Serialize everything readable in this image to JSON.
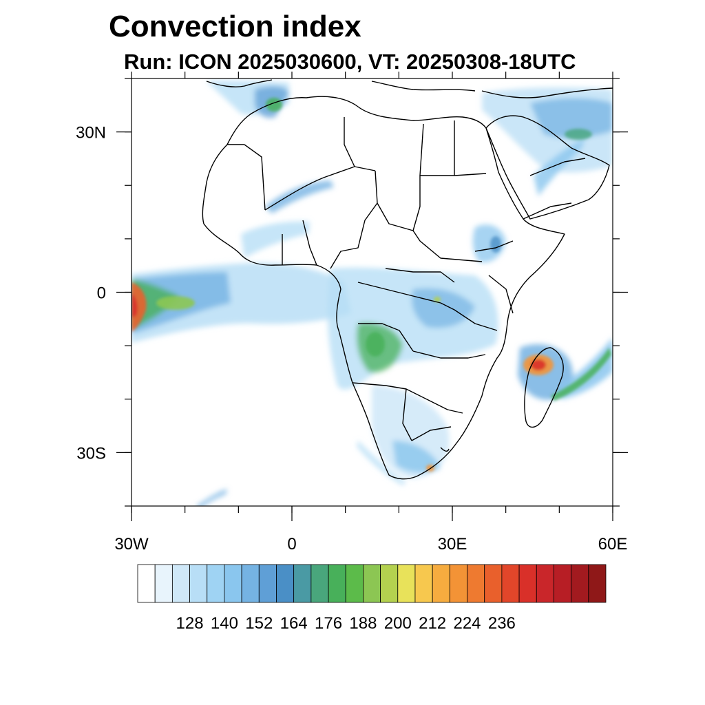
{
  "title": "Convection index",
  "subtitle": "Run: ICON 2025030600,  VT: 20250308-18UTC",
  "map": {
    "lon_range": [
      -30,
      60
    ],
    "lat_range": [
      -40,
      40
    ],
    "x_tick_labels": [
      {
        "lon": -30,
        "label": "30W"
      },
      {
        "lon": 0,
        "label": "0"
      },
      {
        "lon": 30,
        "label": "30E"
      },
      {
        "lon": 60,
        "label": "60E"
      }
    ],
    "y_tick_labels": [
      {
        "lat": 30,
        "label": "30N"
      },
      {
        "lat": 0,
        "label": "0"
      },
      {
        "lat": -30,
        "label": "30S"
      }
    ],
    "minor_lon_ticks": [
      -30,
      -20,
      -10,
      0,
      10,
      20,
      30,
      40,
      50,
      60
    ],
    "minor_lat_ticks": [
      40,
      30,
      20,
      10,
      0,
      -10,
      -20,
      -30,
      -40
    ]
  },
  "colorbar": {
    "colors": [
      "#ffffff",
      "#e8f4fc",
      "#cfe8f8",
      "#b8def6",
      "#9fd3f3",
      "#8ac6ee",
      "#75b3e3",
      "#5f9fd6",
      "#4a8fc6",
      "#4a9aa4",
      "#49a67c",
      "#48b05a",
      "#5cbb4a",
      "#8cc653",
      "#b4d14f",
      "#e8e25a",
      "#f7c84e",
      "#f6ac3f",
      "#f39336",
      "#ee7a30",
      "#e9602c",
      "#e2462a",
      "#d93029",
      "#c9262a",
      "#b71e25",
      "#a21a1f",
      "#8f1818"
    ],
    "tick_labels": [
      "128",
      "140",
      "152",
      "164",
      "176",
      "188",
      "200",
      "212",
      "224",
      "236"
    ]
  }
}
